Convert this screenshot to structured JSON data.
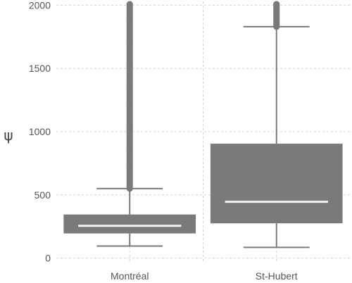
{
  "chart_data": {
    "type": "boxplot",
    "title": "",
    "xlabel": "",
    "ylabel": "ψ",
    "ylim": [
      -30,
      2030
    ],
    "y_ticks": [
      0,
      500,
      1000,
      1500,
      2000
    ],
    "y_tick_labels": [
      "0",
      "500",
      "1000",
      "1500",
      "2000"
    ],
    "grid": true,
    "legend": "none",
    "categories": [
      "Montréal",
      "St-Hubert"
    ],
    "series": [
      {
        "category": "Montréal",
        "whisker_low": 95,
        "q1": 195,
        "median": 255,
        "q3": 345,
        "whisker_high": 550,
        "outliers_from": 550,
        "outliers_to": 2030
      },
      {
        "category": "St-Hubert",
        "whisker_low": 85,
        "q1": 275,
        "median": 445,
        "q3": 905,
        "whisker_high": 1830,
        "outliers_from": 1830,
        "outliers_to": 2030
      }
    ],
    "colors": {
      "box_fill": "#7a7a7a",
      "median_line": "#f2f2f2",
      "whisker": "#7a7a7a",
      "outlier": "#7a7a7a",
      "grid": "#d4d4d4"
    }
  }
}
